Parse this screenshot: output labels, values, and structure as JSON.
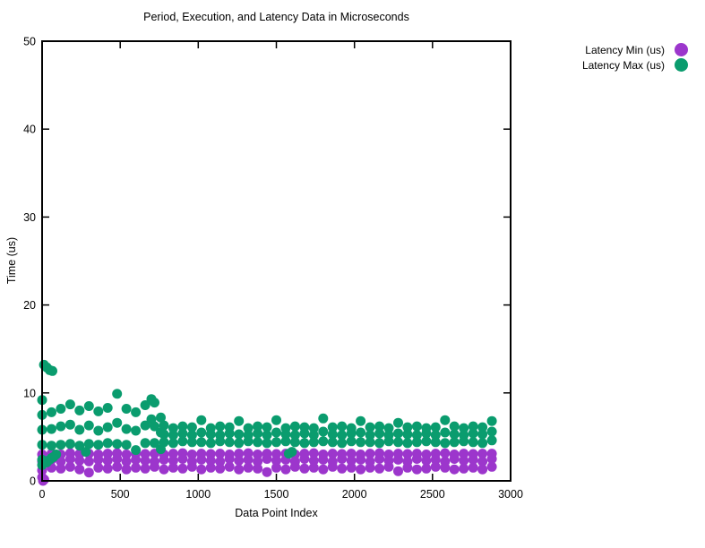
{
  "page": {
    "background": "#ffffff",
    "text_color": "#000000"
  },
  "chart_data": {
    "type": "scatter",
    "title": "Period, Execution, and Latency Data in Microseconds",
    "xlabel": "Data Point Index",
    "ylabel": "Time (us)",
    "xlim": [
      0,
      3000
    ],
    "ylim": [
      0,
      50
    ],
    "x_ticks": [
      0,
      500,
      1000,
      1500,
      2000,
      2500,
      3000
    ],
    "y_ticks": [
      0,
      10,
      20,
      30,
      40,
      50
    ],
    "grid": false,
    "legend_position": "outside-top-right",
    "marker": "filled-circle",
    "marker_radius": 5.5,
    "border_color": "#000000",
    "series": [
      {
        "name": "Latency Min (us)",
        "color": "#9C36CC",
        "points": [
          [
            0,
            3.0
          ],
          [
            0,
            2.2
          ],
          [
            0,
            1.2
          ],
          [
            0,
            0.4
          ],
          [
            6,
            0.0
          ],
          [
            14,
            0.15
          ],
          [
            60,
            3.1
          ],
          [
            60,
            2.4
          ],
          [
            60,
            1.5
          ],
          [
            120,
            3.0
          ],
          [
            120,
            2.2
          ],
          [
            120,
            1.4
          ],
          [
            180,
            3.15
          ],
          [
            180,
            2.5
          ],
          [
            180,
            1.6
          ],
          [
            240,
            3.05
          ],
          [
            240,
            2.3
          ],
          [
            240,
            1.3
          ],
          [
            300,
            3.1
          ],
          [
            300,
            2.2
          ],
          [
            300,
            0.95
          ],
          [
            360,
            3.0
          ],
          [
            360,
            2.4
          ],
          [
            360,
            1.5
          ],
          [
            420,
            3.1
          ],
          [
            420,
            2.3
          ],
          [
            420,
            1.4
          ],
          [
            480,
            3.15
          ],
          [
            480,
            2.5
          ],
          [
            480,
            1.6
          ],
          [
            540,
            3.0
          ],
          [
            540,
            2.2
          ],
          [
            540,
            1.3
          ],
          [
            600,
            3.1
          ],
          [
            600,
            2.4
          ],
          [
            600,
            1.5
          ],
          [
            660,
            3.05
          ],
          [
            660,
            2.3
          ],
          [
            660,
            1.4
          ],
          [
            720,
            3.1
          ],
          [
            720,
            2.2
          ],
          [
            720,
            1.6
          ],
          [
            780,
            3.0
          ],
          [
            780,
            2.4
          ],
          [
            780,
            1.3
          ],
          [
            840,
            3.1
          ],
          [
            840,
            2.3
          ],
          [
            840,
            1.5
          ],
          [
            900,
            3.15
          ],
          [
            900,
            2.5
          ],
          [
            900,
            1.4
          ],
          [
            960,
            3.0
          ],
          [
            960,
            2.2
          ],
          [
            960,
            1.6
          ],
          [
            1020,
            3.1
          ],
          [
            1020,
            2.4
          ],
          [
            1020,
            1.3
          ],
          [
            1080,
            3.05
          ],
          [
            1080,
            2.3
          ],
          [
            1080,
            1.5
          ],
          [
            1140,
            3.1
          ],
          [
            1140,
            2.2
          ],
          [
            1140,
            1.4
          ],
          [
            1200,
            3.0
          ],
          [
            1200,
            2.5
          ],
          [
            1200,
            1.6
          ],
          [
            1260,
            3.1
          ],
          [
            1260,
            2.3
          ],
          [
            1260,
            1.3
          ],
          [
            1320,
            3.15
          ],
          [
            1320,
            2.4
          ],
          [
            1320,
            1.5
          ],
          [
            1380,
            3.0
          ],
          [
            1380,
            2.2
          ],
          [
            1380,
            1.4
          ],
          [
            1440,
            3.1
          ],
          [
            1440,
            2.5
          ],
          [
            1440,
            1.0
          ],
          [
            1500,
            3.05
          ],
          [
            1500,
            2.3
          ],
          [
            1500,
            1.5
          ],
          [
            1560,
            3.1
          ],
          [
            1560,
            2.4
          ],
          [
            1560,
            1.3
          ],
          [
            1620,
            3.0
          ],
          [
            1620,
            2.2
          ],
          [
            1620,
            1.6
          ],
          [
            1680,
            3.1
          ],
          [
            1680,
            2.5
          ],
          [
            1680,
            1.4
          ],
          [
            1740,
            3.15
          ],
          [
            1740,
            2.3
          ],
          [
            1740,
            1.5
          ],
          [
            1800,
            3.0
          ],
          [
            1800,
            2.4
          ],
          [
            1800,
            1.3
          ],
          [
            1860,
            3.1
          ],
          [
            1860,
            2.2
          ],
          [
            1860,
            1.6
          ],
          [
            1920,
            3.05
          ],
          [
            1920,
            2.5
          ],
          [
            1920,
            1.4
          ],
          [
            1980,
            3.1
          ],
          [
            1980,
            2.3
          ],
          [
            1980,
            1.5
          ],
          [
            2040,
            3.0
          ],
          [
            2040,
            2.4
          ],
          [
            2040,
            1.3
          ],
          [
            2100,
            3.1
          ],
          [
            2100,
            2.2
          ],
          [
            2100,
            1.5
          ],
          [
            2160,
            3.15
          ],
          [
            2160,
            2.5
          ],
          [
            2160,
            1.4
          ],
          [
            2220,
            3.0
          ],
          [
            2220,
            2.3
          ],
          [
            2220,
            1.6
          ],
          [
            2280,
            3.1
          ],
          [
            2280,
            2.4
          ],
          [
            2280,
            1.1
          ],
          [
            2340,
            3.05
          ],
          [
            2340,
            2.2
          ],
          [
            2340,
            1.5
          ],
          [
            2400,
            3.1
          ],
          [
            2400,
            2.5
          ],
          [
            2400,
            1.3
          ],
          [
            2460,
            3.0
          ],
          [
            2460,
            2.3
          ],
          [
            2460,
            1.4
          ],
          [
            2520,
            3.1
          ],
          [
            2520,
            2.4
          ],
          [
            2520,
            1.6
          ],
          [
            2580,
            3.15
          ],
          [
            2580,
            2.2
          ],
          [
            2580,
            1.5
          ],
          [
            2640,
            3.0
          ],
          [
            2640,
            2.5
          ],
          [
            2640,
            1.3
          ],
          [
            2700,
            3.1
          ],
          [
            2700,
            2.3
          ],
          [
            2700,
            1.4
          ],
          [
            2760,
            3.05
          ],
          [
            2760,
            2.4
          ],
          [
            2760,
            1.5
          ],
          [
            2820,
            3.1
          ],
          [
            2820,
            2.2
          ],
          [
            2820,
            1.3
          ],
          [
            2880,
            3.1
          ],
          [
            2880,
            2.5
          ],
          [
            2880,
            1.6
          ]
        ]
      },
      {
        "name": "Latency Max (us)",
        "color": "#0A9C6E",
        "points": [
          [
            0,
            9.2
          ],
          [
            0,
            7.5
          ],
          [
            0,
            5.8
          ],
          [
            0,
            4.1
          ],
          [
            0,
            2.4
          ],
          [
            0,
            1.8
          ],
          [
            12,
            13.2
          ],
          [
            30,
            12.9
          ],
          [
            48,
            12.6
          ],
          [
            66,
            12.5
          ],
          [
            30,
            2.1
          ],
          [
            48,
            2.4
          ],
          [
            72,
            2.7
          ],
          [
            90,
            3.0
          ],
          [
            60,
            7.8
          ],
          [
            60,
            5.9
          ],
          [
            60,
            4.0
          ],
          [
            60,
            2.6
          ],
          [
            120,
            8.2
          ],
          [
            120,
            6.2
          ],
          [
            120,
            4.1
          ],
          [
            180,
            8.7
          ],
          [
            180,
            6.4
          ],
          [
            180,
            4.2
          ],
          [
            240,
            8.0
          ],
          [
            240,
            5.8
          ],
          [
            240,
            4.0
          ],
          [
            280,
            3.3
          ],
          [
            300,
            8.5
          ],
          [
            300,
            6.3
          ],
          [
            300,
            4.2
          ],
          [
            360,
            7.9
          ],
          [
            360,
            5.7
          ],
          [
            360,
            4.1
          ],
          [
            420,
            8.3
          ],
          [
            420,
            6.1
          ],
          [
            420,
            4.3
          ],
          [
            480,
            9.9
          ],
          [
            480,
            6.6
          ],
          [
            480,
            4.2
          ],
          [
            540,
            8.2
          ],
          [
            540,
            5.9
          ],
          [
            540,
            4.1
          ],
          [
            600,
            7.8
          ],
          [
            600,
            5.7
          ],
          [
            600,
            3.5
          ],
          [
            660,
            8.6
          ],
          [
            660,
            6.3
          ],
          [
            660,
            4.3
          ],
          [
            700,
            9.3
          ],
          [
            700,
            7.0
          ],
          [
            720,
            8.9
          ],
          [
            720,
            6.2
          ],
          [
            720,
            4.3
          ],
          [
            760,
            7.2
          ],
          [
            760,
            5.5
          ],
          [
            760,
            3.6
          ],
          [
            780,
            6.3
          ],
          [
            780,
            5.3
          ],
          [
            780,
            4.4
          ],
          [
            840,
            6.0
          ],
          [
            840,
            5.2
          ],
          [
            840,
            4.3
          ],
          [
            900,
            6.2
          ],
          [
            900,
            5.4
          ],
          [
            900,
            4.5
          ],
          [
            960,
            6.1
          ],
          [
            960,
            5.2
          ],
          [
            960,
            4.4
          ],
          [
            1020,
            6.9
          ],
          [
            1020,
            5.5
          ],
          [
            1020,
            4.4
          ],
          [
            1080,
            6.0
          ],
          [
            1080,
            5.3
          ],
          [
            1080,
            4.3
          ],
          [
            1140,
            6.2
          ],
          [
            1140,
            5.2
          ],
          [
            1140,
            4.5
          ],
          [
            1200,
            6.1
          ],
          [
            1200,
            5.4
          ],
          [
            1200,
            4.4
          ],
          [
            1260,
            6.8
          ],
          [
            1260,
            5.3
          ],
          [
            1260,
            4.3
          ],
          [
            1320,
            6.0
          ],
          [
            1320,
            5.2
          ],
          [
            1320,
            4.5
          ],
          [
            1380,
            6.2
          ],
          [
            1380,
            5.4
          ],
          [
            1380,
            4.4
          ],
          [
            1440,
            6.1
          ],
          [
            1440,
            5.2
          ],
          [
            1440,
            4.3
          ],
          [
            1500,
            6.9
          ],
          [
            1500,
            5.5
          ],
          [
            1500,
            4.4
          ],
          [
            1560,
            6.0
          ],
          [
            1560,
            5.3
          ],
          [
            1560,
            4.5
          ],
          [
            1580,
            3.1
          ],
          [
            1600,
            3.3
          ],
          [
            1620,
            6.2
          ],
          [
            1620,
            5.2
          ],
          [
            1620,
            4.4
          ],
          [
            1680,
            6.1
          ],
          [
            1680,
            5.4
          ],
          [
            1680,
            4.3
          ],
          [
            1740,
            6.0
          ],
          [
            1740,
            5.2
          ],
          [
            1740,
            4.4
          ],
          [
            1800,
            7.1
          ],
          [
            1800,
            5.6
          ],
          [
            1800,
            4.5
          ],
          [
            1860,
            6.1
          ],
          [
            1860,
            5.3
          ],
          [
            1860,
            4.4
          ],
          [
            1920,
            6.2
          ],
          [
            1920,
            5.2
          ],
          [
            1920,
            4.3
          ],
          [
            1980,
            6.0
          ],
          [
            1980,
            5.4
          ],
          [
            1980,
            4.5
          ],
          [
            2040,
            6.8
          ],
          [
            2040,
            5.5
          ],
          [
            2040,
            4.4
          ],
          [
            2100,
            6.1
          ],
          [
            2100,
            5.2
          ],
          [
            2100,
            4.4
          ],
          [
            2160,
            6.2
          ],
          [
            2160,
            5.4
          ],
          [
            2160,
            4.3
          ],
          [
            2220,
            6.0
          ],
          [
            2220,
            5.2
          ],
          [
            2220,
            4.5
          ],
          [
            2280,
            6.6
          ],
          [
            2280,
            5.4
          ],
          [
            2280,
            4.4
          ],
          [
            2340,
            6.1
          ],
          [
            2340,
            5.3
          ],
          [
            2340,
            4.3
          ],
          [
            2400,
            6.2
          ],
          [
            2400,
            5.2
          ],
          [
            2400,
            4.4
          ],
          [
            2460,
            6.0
          ],
          [
            2460,
            5.4
          ],
          [
            2460,
            4.5
          ],
          [
            2520,
            6.1
          ],
          [
            2520,
            5.2
          ],
          [
            2520,
            4.4
          ],
          [
            2580,
            6.9
          ],
          [
            2580,
            5.5
          ],
          [
            2580,
            4.3
          ],
          [
            2640,
            6.2
          ],
          [
            2640,
            5.3
          ],
          [
            2640,
            4.4
          ],
          [
            2700,
            6.0
          ],
          [
            2700,
            5.2
          ],
          [
            2700,
            4.5
          ],
          [
            2760,
            6.2
          ],
          [
            2760,
            5.4
          ],
          [
            2760,
            4.4
          ],
          [
            2820,
            6.1
          ],
          [
            2820,
            5.3
          ],
          [
            2820,
            4.3
          ],
          [
            2880,
            6.8
          ],
          [
            2880,
            5.6
          ],
          [
            2880,
            4.6
          ]
        ]
      }
    ]
  }
}
